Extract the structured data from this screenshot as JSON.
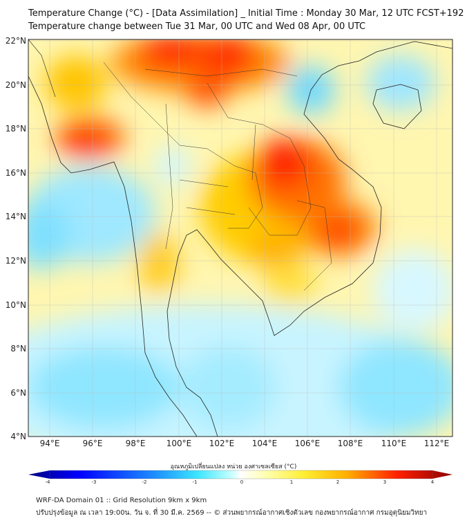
{
  "title": {
    "line1": "Temperature Change (°C) - [Data Assimilation] _ Initial Time : Monday 30 Mar, 12 UTC FCST+192",
    "line2": "Temperature change between Tue 31 Mar, 00 UTC and Wed 08 Apr, 00 UTC"
  },
  "axes": {
    "lat_labels": [
      "22°N",
      "20°N",
      "18°N",
      "16°N",
      "14°N",
      "12°N",
      "10°N",
      "8°N",
      "6°N",
      "4°N"
    ],
    "lon_labels": [
      "94°E",
      "96°E",
      "98°E",
      "100°E",
      "102°E",
      "104°E",
      "106°E",
      "108°E",
      "110°E",
      "112°E"
    ]
  },
  "colorbar": {
    "label": "อุณหภูมิเปลี่ยนแปลง หน่วย องศาเซลเซียส (°C)",
    "ticks": [
      "-4",
      "-3",
      "-2",
      "-1",
      "0",
      "1",
      "2",
      "3",
      "4"
    ],
    "colors": [
      "#00007f",
      "#0000ff",
      "#1e90ff",
      "#3ee6ff",
      "#e8ffff",
      "#ffffff",
      "#ffff99",
      "#ffd700",
      "#ff8c00",
      "#ff0000",
      "#8b0000"
    ]
  },
  "footer": {
    "line1": "WRF-DA Domain 01 :: Grid Resolution 9km x 9km",
    "line2": "ปรับปรุงข้อมูล ณ เวลา 19:00น. วัน จ. ที่ 30 มี.ค. 2569 -- © ส่วนพยากรณ์อากาศเชิงตัวเลข กองพยากรณ์อากาศ กรมอุตุนิยมวิทยา"
  }
}
